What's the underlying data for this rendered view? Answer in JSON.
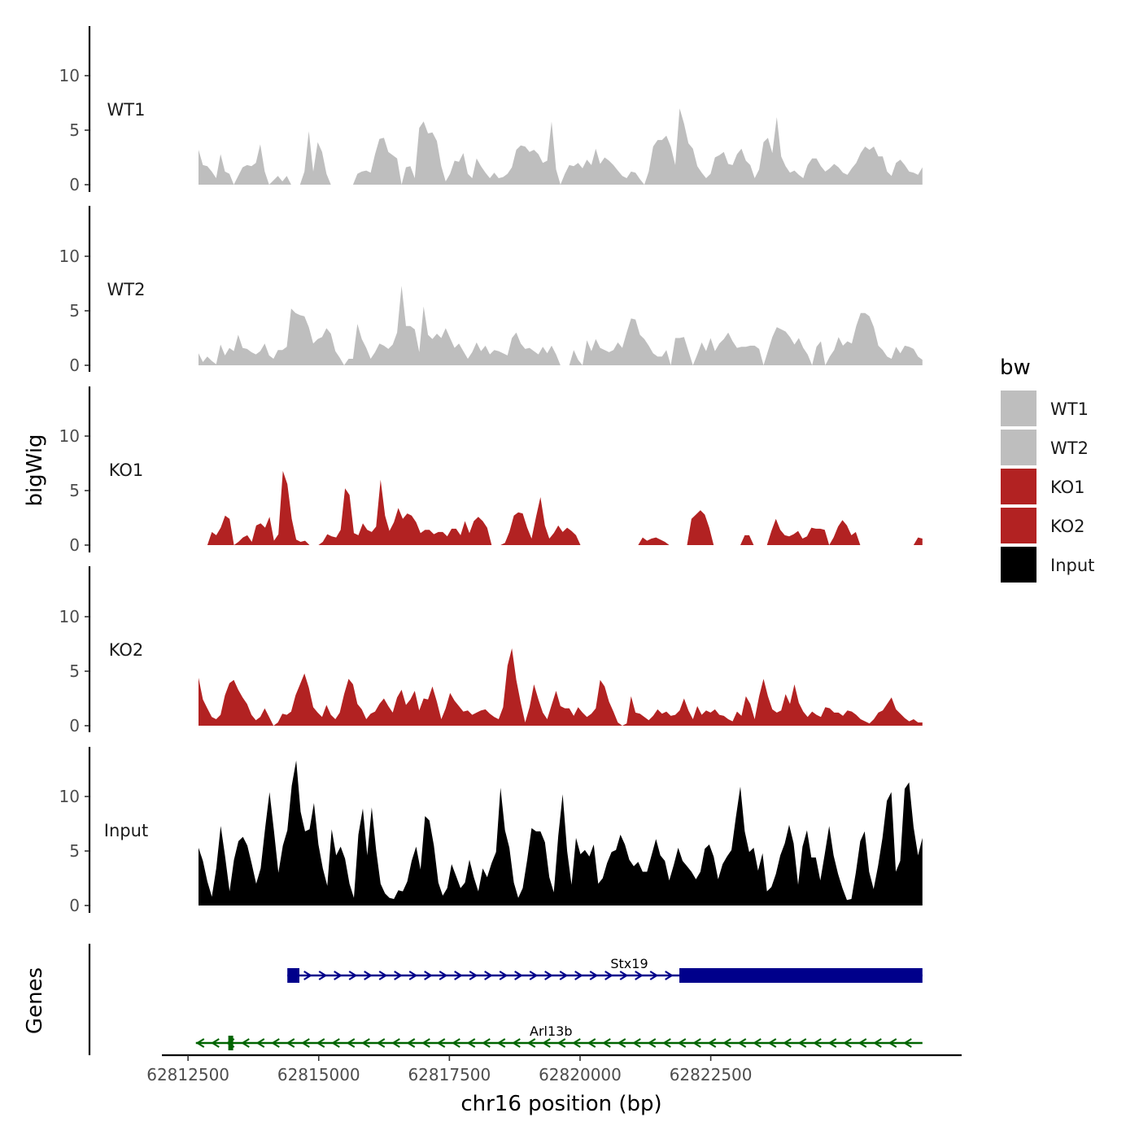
{
  "chart_data": {
    "type": "area",
    "title": "",
    "xlabel": "chr16 position (bp)",
    "ylabel": "bigWig",
    "ylim": [
      0,
      14
    ],
    "yticks": [
      "0",
      "5",
      "10"
    ],
    "xlim": [
      62812000,
      62827300
    ],
    "xticks": [
      "62812500",
      "62815000",
      "62817500",
      "62820000",
      "62822500"
    ],
    "x_start": 62812700,
    "x_end": 62826550,
    "series": [
      {
        "name": "WT1",
        "color": "#bebebe",
        "values": [
          3.2,
          1.8,
          1.7,
          1.2,
          0.6,
          2.8,
          1.2,
          1.0,
          0.0,
          0.8,
          1.6,
          1.8,
          1.7,
          2.0,
          3.7,
          1.2,
          0.0,
          0.4,
          0.8,
          0.3,
          0.8,
          0.0,
          0.0,
          0.0,
          1.2,
          4.9,
          1.2,
          3.9,
          3.0,
          1.0,
          0.0,
          0.0,
          0.0,
          0.0,
          0.0,
          0.0,
          1.0,
          1.2,
          1.3,
          1.1,
          2.8,
          4.2,
          4.3,
          3.0,
          2.7,
          2.4,
          0.0,
          1.6,
          1.7,
          0.6,
          5.2,
          5.8,
          4.7,
          4.8,
          4.0,
          1.7,
          0.3,
          1.0,
          2.2,
          2.1,
          2.9,
          1.0,
          0.6,
          2.4,
          1.7,
          1.1,
          0.6,
          1.1,
          0.6,
          0.7,
          1.0,
          1.6,
          3.2,
          3.6,
          3.5,
          3.0,
          3.2,
          2.8,
          2.0,
          2.2,
          5.8,
          1.4,
          0.0,
          1.0,
          1.8,
          1.7,
          2.0,
          1.5,
          2.3,
          1.8,
          3.3,
          1.9,
          2.5,
          2.2,
          1.8,
          1.3,
          0.8,
          0.6,
          1.2,
          1.1,
          0.5,
          0.0,
          1.2,
          3.5,
          4.1,
          4.1,
          4.5,
          3.5,
          1.8,
          7.0,
          5.6,
          3.8,
          3.3,
          1.7,
          1.1,
          0.6,
          1.0,
          2.5,
          2.7,
          3.0,
          1.9,
          1.8,
          2.8,
          3.3,
          2.2,
          1.8,
          0.6,
          1.4,
          3.9,
          4.3,
          2.9,
          6.2,
          2.6,
          1.7,
          1.1,
          1.3,
          0.9,
          0.6,
          1.8,
          2.4,
          2.4,
          1.7,
          1.2,
          1.5,
          1.9,
          1.6,
          1.1,
          0.9,
          1.5,
          2.0,
          2.9,
          3.5,
          3.2,
          3.5,
          2.6,
          2.6,
          1.2,
          0.8,
          2.0,
          2.3,
          1.8,
          1.2,
          1.1,
          0.9,
          1.6
        ]
      },
      {
        "name": "WT2",
        "color": "#bebebe",
        "values": [
          1.1,
          0.3,
          0.8,
          0.4,
          0.1,
          1.9,
          0.9,
          1.6,
          1.3,
          2.8,
          1.6,
          1.5,
          1.2,
          1.0,
          1.3,
          2.0,
          0.9,
          0.6,
          1.4,
          1.4,
          1.7,
          5.2,
          4.8,
          4.6,
          4.5,
          3.5,
          2.0,
          2.4,
          2.6,
          3.4,
          2.9,
          1.3,
          0.7,
          0.0,
          0.6,
          0.6,
          3.8,
          2.4,
          1.6,
          0.6,
          1.2,
          2.0,
          1.8,
          1.5,
          1.9,
          3.0,
          7.3,
          3.6,
          3.6,
          3.3,
          1.2,
          5.4,
          2.8,
          2.4,
          2.9,
          2.5,
          3.4,
          2.5,
          1.6,
          2.0,
          1.3,
          0.6,
          1.2,
          2.1,
          1.3,
          1.8,
          1.0,
          1.4,
          1.3,
          1.1,
          0.9,
          2.5,
          3.0,
          2.0,
          1.5,
          1.6,
          1.3,
          1.0,
          1.7,
          1.1,
          1.8,
          1.0,
          0.0,
          0.0,
          0.0,
          1.4,
          0.5,
          0.0,
          2.3,
          1.3,
          2.4,
          1.6,
          1.4,
          1.2,
          1.4,
          2.1,
          1.6,
          3.0,
          4.3,
          4.2,
          2.8,
          2.4,
          1.8,
          1.1,
          0.8,
          0.8,
          1.4,
          0.0,
          2.5,
          2.5,
          2.6,
          1.3,
          0.0,
          1.0,
          2.1,
          1.3,
          2.5,
          1.3,
          2.0,
          2.4,
          3.0,
          2.2,
          1.6,
          1.7,
          1.7,
          1.8,
          1.8,
          1.5,
          0.0,
          1.3,
          2.6,
          3.5,
          3.3,
          3.1,
          2.6,
          1.9,
          2.5,
          1.6,
          1.0,
          0.0,
          1.7,
          2.2,
          0.0,
          0.8,
          1.4,
          2.6,
          1.8,
          2.2,
          2.0,
          3.6,
          4.8,
          4.8,
          4.5,
          3.5,
          1.8,
          1.4,
          0.8,
          0.6,
          1.7,
          1.1,
          1.8,
          1.7,
          1.5,
          0.8,
          0.5
        ]
      },
      {
        "name": "KO1",
        "color": "#b22222",
        "values": [
          0.0,
          0.0,
          0.0,
          1.2,
          0.9,
          1.6,
          2.7,
          2.4,
          0.0,
          0.3,
          0.7,
          0.9,
          0.3,
          1.8,
          2.0,
          1.6,
          2.6,
          0.4,
          1.0,
          6.8,
          5.6,
          2.4,
          0.5,
          0.3,
          0.4,
          0.0,
          0.0,
          0.0,
          0.3,
          1.0,
          0.8,
          0.7,
          1.4,
          5.2,
          4.6,
          1.1,
          0.9,
          2.0,
          1.4,
          1.2,
          1.7,
          6.0,
          2.7,
          1.3,
          2.1,
          3.4,
          2.4,
          2.9,
          2.7,
          2.1,
          1.1,
          1.4,
          1.4,
          1.0,
          1.2,
          1.2,
          0.8,
          1.5,
          1.5,
          0.9,
          2.2,
          1.1,
          2.2,
          2.6,
          2.2,
          1.6,
          0.0,
          0.0,
          0.0,
          0.2,
          1.2,
          2.7,
          3.0,
          2.9,
          1.6,
          0.6,
          2.6,
          4.4,
          1.8,
          0.6,
          1.1,
          1.8,
          1.2,
          1.6,
          1.3,
          0.9,
          0.0,
          0.0,
          0.0,
          0.0,
          0.0,
          0.0,
          0.0,
          0.0,
          0.0,
          0.0,
          0.0,
          0.0,
          0.0,
          0.0,
          0.7,
          0.4,
          0.6,
          0.7,
          0.5,
          0.3,
          0.0,
          0.0,
          0.0,
          0.0,
          0.0,
          2.4,
          2.8,
          3.2,
          2.8,
          1.6,
          0.0,
          0.0,
          0.0,
          0.0,
          0.0,
          0.0,
          0.0,
          0.9,
          0.9,
          0.0,
          0.0,
          0.0,
          0.0,
          1.3,
          2.4,
          1.4,
          0.9,
          0.8,
          1.0,
          1.3,
          0.6,
          0.8,
          1.6,
          1.5,
          1.5,
          1.4,
          0.0,
          0.7,
          1.7,
          2.3,
          1.8,
          0.9,
          1.2,
          0.0,
          0.0,
          0.0,
          0.0,
          0.0,
          0.0,
          0.0,
          0.0,
          0.0,
          0.0,
          0.0,
          0.0,
          0.0,
          0.7,
          0.6
        ]
      },
      {
        "name": "KO2",
        "color": "#b22222",
        "values": [
          4.4,
          2.4,
          1.6,
          0.8,
          0.6,
          1.0,
          2.8,
          3.9,
          4.2,
          3.3,
          2.6,
          2.0,
          1.0,
          0.5,
          0.8,
          1.6,
          0.8,
          0.0,
          0.3,
          1.1,
          1.0,
          1.3,
          2.8,
          3.8,
          4.8,
          3.5,
          1.7,
          1.2,
          0.8,
          1.9,
          1.0,
          0.6,
          1.2,
          2.9,
          4.3,
          3.8,
          2.0,
          1.5,
          0.6,
          1.1,
          1.3,
          2.0,
          2.5,
          1.8,
          1.2,
          2.6,
          3.3,
          1.9,
          2.4,
          3.2,
          1.4,
          2.5,
          2.4,
          3.6,
          2.2,
          0.6,
          1.6,
          3.0,
          2.3,
          1.8,
          1.3,
          1.4,
          1.0,
          1.2,
          1.4,
          1.5,
          1.1,
          0.8,
          0.6,
          1.7,
          5.5,
          7.1,
          4.2,
          2.1,
          0.3,
          1.7,
          3.8,
          2.4,
          1.2,
          0.6,
          1.9,
          3.2,
          1.8,
          1.6,
          1.6,
          0.9,
          1.7,
          1.2,
          0.8,
          1.1,
          1.6,
          4.2,
          3.6,
          2.2,
          1.3,
          0.3,
          0.0,
          0.2,
          2.7,
          1.2,
          1.1,
          0.8,
          0.5,
          0.9,
          1.5,
          1.1,
          1.3,
          0.9,
          1.0,
          1.4,
          2.5,
          1.4,
          0.6,
          1.8,
          1.0,
          1.4,
          1.2,
          1.5,
          1.0,
          0.9,
          0.6,
          0.4,
          1.3,
          0.9,
          2.7,
          2.0,
          0.6,
          2.7,
          4.3,
          2.7,
          1.5,
          1.2,
          1.4,
          2.9,
          2.0,
          3.8,
          2.1,
          1.3,
          0.8,
          1.3,
          1.0,
          0.8,
          1.7,
          1.6,
          1.2,
          1.2,
          0.9,
          1.4,
          1.3,
          1.0,
          0.6,
          0.4,
          0.2,
          0.6,
          1.2,
          1.4,
          2.0,
          2.6,
          1.5,
          1.1,
          0.7,
          0.4,
          0.6,
          0.3,
          0.3
        ]
      },
      {
        "name": "Input",
        "color": "#000000",
        "values": [
          5.3,
          4.1,
          2.2,
          0.8,
          3.4,
          7.3,
          4.5,
          1.3,
          4.2,
          5.9,
          6.3,
          5.5,
          3.8,
          2.0,
          3.4,
          7.1,
          10.4,
          6.8,
          3.0,
          5.5,
          6.9,
          11.0,
          13.3,
          8.6,
          6.8,
          7.0,
          9.4,
          5.6,
          3.4,
          1.8,
          7.0,
          4.6,
          5.4,
          4.3,
          2.0,
          0.7,
          6.5,
          8.9,
          4.6,
          9.0,
          5.1,
          2.0,
          1.1,
          0.7,
          0.6,
          1.4,
          1.3,
          2.2,
          4.1,
          5.4,
          3.3,
          8.2,
          7.8,
          5.5,
          2.1,
          0.9,
          1.6,
          3.8,
          2.7,
          1.6,
          2.1,
          4.2,
          2.6,
          1.3,
          3.4,
          2.6,
          3.9,
          4.9,
          10.8,
          6.9,
          5.3,
          2.1,
          0.7,
          1.6,
          4.2,
          7.1,
          6.8,
          6.8,
          5.8,
          2.6,
          1.2,
          6.4,
          10.2,
          5.0,
          1.9,
          6.2,
          4.7,
          5.1,
          4.5,
          5.6,
          2.0,
          2.5,
          3.9,
          4.9,
          5.1,
          6.5,
          5.6,
          4.2,
          3.6,
          4.0,
          3.1,
          3.1,
          4.6,
          6.1,
          4.6,
          4.1,
          2.3,
          3.7,
          5.3,
          4.1,
          3.6,
          3.1,
          2.4,
          3.1,
          5.2,
          5.6,
          4.5,
          2.4,
          3.8,
          4.5,
          5.1,
          8.1,
          10.9,
          6.8,
          4.9,
          5.3,
          3.2,
          4.8,
          1.3,
          1.7,
          2.9,
          4.6,
          5.7,
          7.4,
          5.7,
          1.9,
          5.4,
          6.9,
          4.4,
          4.4,
          2.3,
          4.7,
          7.3,
          4.6,
          2.9,
          1.6,
          0.5,
          0.6,
          3.0,
          5.9,
          6.8,
          3.1,
          1.5,
          3.6,
          6.2,
          9.6,
          10.4,
          3.1,
          4.1,
          10.7,
          11.3,
          7.2,
          4.6,
          6.2
        ]
      }
    ],
    "legend": {
      "title": "bw",
      "position": "right",
      "entries": [
        "WT1",
        "WT2",
        "KO1",
        "KO2",
        "Input"
      ]
    },
    "genes_label": "Genes",
    "genes": [
      {
        "name": "Stx19",
        "strand": "+",
        "color": "#00008b",
        "start": 62814400,
        "end": 62826550,
        "exons": [
          [
            62814400,
            62814630
          ],
          [
            62821900,
            62826550
          ]
        ],
        "intron_arrow": "›"
      },
      {
        "name": "Arl13b",
        "strand": "-",
        "color": "#006400",
        "start": 62812650,
        "end": 62826550,
        "exons": [
          [
            62813270,
            62813360
          ]
        ],
        "intron_arrow": "‹"
      }
    ]
  }
}
